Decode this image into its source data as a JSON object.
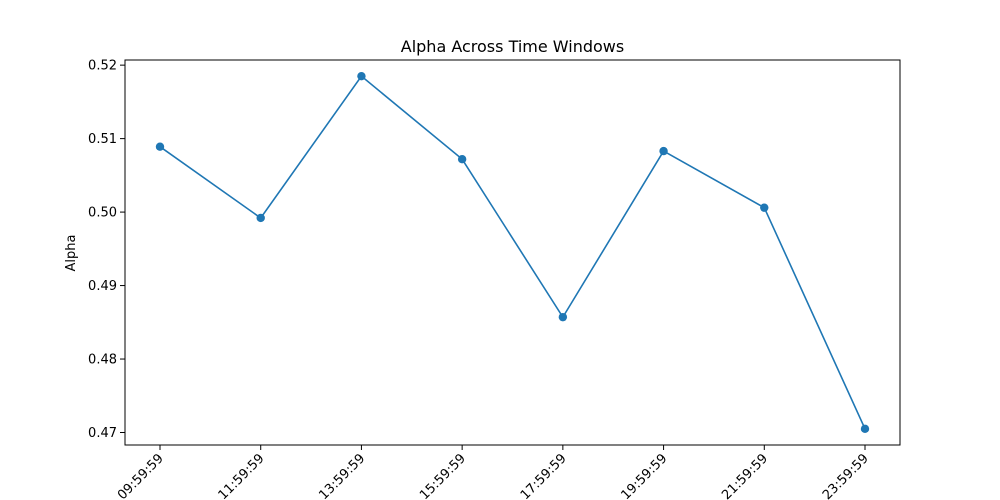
{
  "chart_data": {
    "type": "line",
    "title": "Alpha Across Time Windows",
    "xlabel": "",
    "ylabel": "Alpha",
    "categories": [
      "09:59:59",
      "11:59:59",
      "13:59:59",
      "15:59:59",
      "17:59:59",
      "19:59:59",
      "21:59:59",
      "23:59:59"
    ],
    "series": [
      {
        "values": [
          0.5089,
          0.4992,
          0.5185,
          0.5072,
          0.4857,
          0.5083,
          0.5006,
          0.4705
        ]
      }
    ],
    "ylim": [
      0.4683,
      0.5207
    ],
    "yticks": [
      "0.47",
      "0.48",
      "0.49",
      "0.50",
      "0.51",
      "0.52"
    ],
    "grid": false,
    "x_tick_rotation": 45,
    "color": "#1f77b4"
  }
}
